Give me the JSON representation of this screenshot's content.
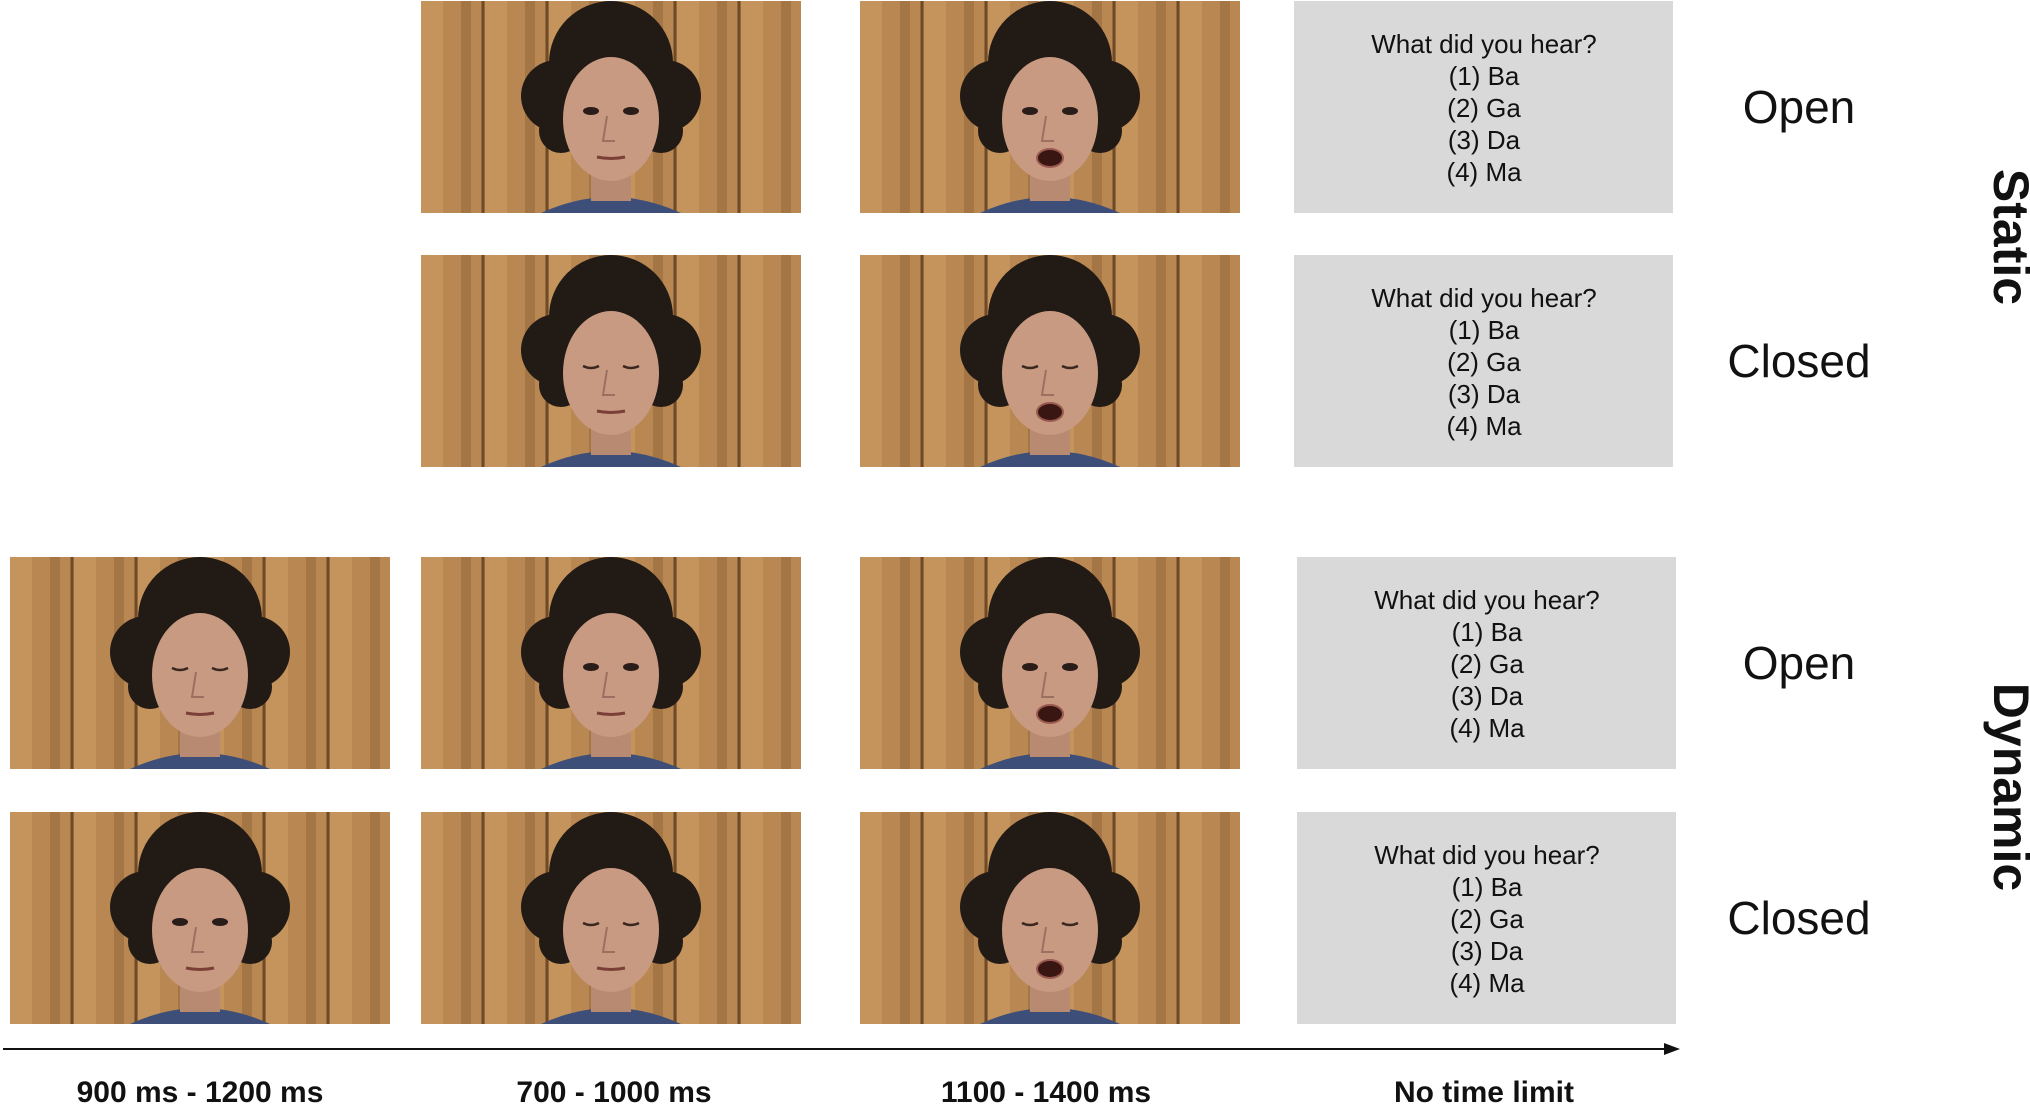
{
  "rows": [
    {
      "question": "What did you hear?",
      "options": [
        "(1) Ba",
        "(2) Ga",
        "(3) Da",
        "(4) Ma"
      ],
      "label": "Open"
    },
    {
      "question": "What did you hear?",
      "options": [
        "(1) Ba",
        "(2) Ga",
        "(3) Da",
        "(4) Ma"
      ],
      "label": "Closed"
    },
    {
      "question": "What did you hear?",
      "options": [
        "(1) Ba",
        "(2) Ga",
        "(3) Da",
        "(4) Ma"
      ],
      "label": "Open"
    },
    {
      "question": "What did you hear?",
      "options": [
        "(1) Ba",
        "(2) Ga",
        "(3) Da",
        "(4) Ma"
      ],
      "label": "Closed"
    }
  ],
  "groups": [
    "Static",
    "Dynamic"
  ],
  "timeline": [
    "900 ms - 1200 ms",
    "700 - 1000 ms",
    "1100 - 1400 ms",
    "No time limit"
  ]
}
